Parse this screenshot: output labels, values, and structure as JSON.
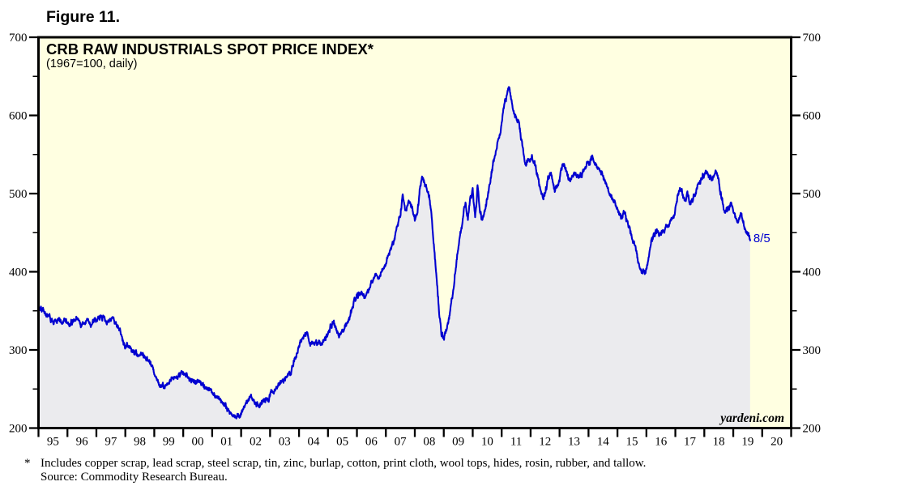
{
  "figure_label": "Figure 11.",
  "chart": {
    "title": "CRB RAW INDUSTRIALS SPOT PRICE INDEX*",
    "subtitle": "(1967=100, daily)",
    "watermark": "yardeni.com",
    "last_point_label": "8/5",
    "colors": {
      "background": "#FFFFE1",
      "area_fill": "#EBEBEE",
      "line": "#0000D0",
      "axis": "#000000",
      "annotation": "#0000D0"
    }
  },
  "footnote": {
    "marker": "*",
    "line1": "Includes copper scrap, lead scrap, steel scrap, tin, zinc, burlap, cotton, print cloth, wool tops, hides, rosin, rubber, and tallow.",
    "line2": "Source: Commodity Research Bureau."
  },
  "chart_data": {
    "type": "line",
    "title": "CRB RAW INDUSTRIALS SPOT PRICE INDEX*",
    "subtitle": "(1967=100, daily)",
    "grid": false,
    "legend": false,
    "x": {
      "start_year": 1995,
      "end_year": 2021,
      "tick_labels": [
        "95",
        "96",
        "97",
        "98",
        "99",
        "00",
        "01",
        "02",
        "03",
        "04",
        "05",
        "06",
        "07",
        "08",
        "09",
        "10",
        "11",
        "12",
        "13",
        "14",
        "15",
        "16",
        "17",
        "18",
        "19",
        "20"
      ]
    },
    "y": {
      "min": 200,
      "max": 700,
      "major_ticks": [
        200,
        300,
        400,
        500,
        600,
        700
      ],
      "minor_ticks": [
        250,
        350,
        450,
        550,
        650
      ]
    },
    "series": [
      {
        "name": "CRB Raw Industrials Spot Price Index (1967=100)",
        "frequency": "monthly estimates of daily series",
        "start": "1995-01",
        "end": "2019-08",
        "values": [
          350,
          355,
          353,
          347,
          342,
          338,
          334,
          337,
          341,
          337,
          333,
          338,
          334,
          330,
          334,
          339,
          341,
          336,
          331,
          334,
          338,
          335,
          331,
          336,
          339,
          343,
          345,
          341,
          337,
          334,
          337,
          340,
          336,
          331,
          322,
          310,
          304,
          306,
          302,
          299,
          297,
          295,
          293,
          294,
          292,
          290,
          288,
          280,
          268,
          261,
          256,
          253,
          252,
          255,
          258,
          261,
          262,
          265,
          270,
          272,
          269,
          266,
          264,
          265,
          262,
          260,
          261,
          258,
          256,
          253,
          250,
          248,
          246,
          243,
          240,
          237,
          234,
          231,
          227,
          223,
          219,
          215,
          213,
          216,
          218,
          224,
          230,
          237,
          241,
          238,
          233,
          231,
          232,
          234,
          235,
          236,
          242,
          246,
          250,
          254,
          258,
          261,
          264,
          268,
          272,
          276,
          286,
          296,
          305,
          312,
          318,
          322,
          312,
          306,
          309,
          313,
          310,
          307,
          311,
          313,
          318,
          331,
          336,
          330,
          322,
          321,
          326,
          330,
          334,
          342,
          355,
          365,
          370,
          372,
          374,
          368,
          372,
          378,
          388,
          392,
          396,
          394,
          398,
          404,
          410,
          422,
          430,
          436,
          448,
          460,
          470,
          500,
          478,
          485,
          488,
          482,
          467,
          472,
          505,
          522,
          515,
          505,
          498,
          470,
          430,
          395,
          350,
          318,
          315,
          325,
          340,
          360,
          380,
          405,
          430,
          450,
          470,
          490,
          468,
          498,
          505,
          468,
          512,
          478,
          468,
          478,
          492,
          510,
          528,
          545,
          558,
          572,
          590,
          612,
          625,
          635,
          620,
          605,
          598,
          595,
          570,
          552,
          538,
          542,
          545,
          542,
          535,
          522,
          508,
          496,
          500,
          515,
          527,
          520,
          503,
          508,
          515,
          532,
          539,
          528,
          520,
          523,
          527,
          522,
          519,
          523,
          529,
          534,
          541,
          545,
          543,
          538,
          533,
          528,
          524,
          514,
          507,
          500,
          494,
          488,
          481,
          472,
          469,
          473,
          465,
          458,
          443,
          436,
          424,
          410,
          399,
          401,
          403,
          420,
          441,
          448,
          452,
          450,
          447,
          452,
          457,
          460,
          464,
          470,
          482,
          499,
          505,
          498,
          492,
          503,
          486,
          490,
          498,
          507,
          514,
          517,
          524,
          527,
          522,
          517,
          524,
          526,
          518,
          498,
          482,
          477,
          482,
          487,
          477,
          469,
          463,
          473,
          466,
          456,
          447,
          440
        ]
      }
    ],
    "annotation": {
      "label": "8/5",
      "date": "2019-08-05",
      "value": 440
    }
  }
}
